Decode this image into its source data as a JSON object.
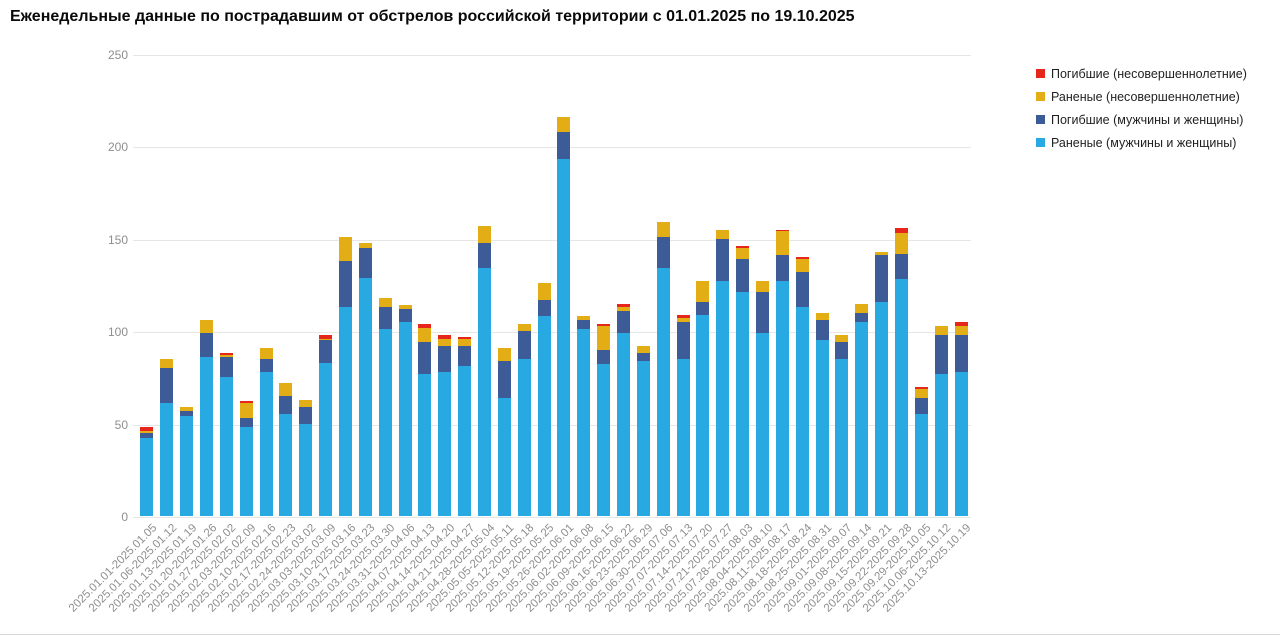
{
  "title": "Еженедельные данные по пострадавшим от обстрелов российской территории с 01.01.2025 по 19.10.2025",
  "legend": [
    {
      "label": "Погибшие (несовершеннолетние)",
      "color": "#e7261b"
    },
    {
      "label": "Раненые (несовершеннолетние)",
      "color": "#e2ad15"
    },
    {
      "label": "Погибшие (мужчины и женщины)",
      "color": "#3d5b97"
    },
    {
      "label": "Раненые (мужчины и женщины)",
      "color": "#29a9e1"
    }
  ],
  "chart_data": {
    "type": "bar",
    "stacked": true,
    "title": "Еженедельные данные по пострадавшим от обстрелов российской территории с 01.01.2025 по 19.10.2025",
    "xlabel": "",
    "ylabel": "",
    "ylim": [
      0,
      250
    ],
    "y_ticks": [
      0,
      50,
      100,
      150,
      200,
      250
    ],
    "grid": true,
    "legend_position": "top-right",
    "categories": [
      "2025.01.01-2025.01.05",
      "2025.01.06-2025.01.12",
      "2025.01.13-2025.01.19",
      "2025.01.20-2025.01.26",
      "2025.01.27-2025.02.02",
      "2025.02.03-2025.02.09",
      "2025.02.10-2025.02.16",
      "2025.02.17-2025.02.23",
      "2025.02.24-2025.03.02",
      "2025.03.03-2025.03.09",
      "2025.03.10-2025.03.16",
      "2025.03.17-2025.03.23",
      "2025.03.24-2025.03.30",
      "2025.03.31-2025.04.06",
      "2025.04.07-2025.04.13",
      "2025.04.14-2025.04.20",
      "2025.04.21-2025.04.27",
      "2025.04.28-2025.05.04",
      "2025.05.05-2025.05.11",
      "2025.05.12-2025.05.18",
      "2025.05.19-2025.05.25",
      "2025.05.26-2025.06.01",
      "2025.06.02-2025.06.08",
      "2025.06.09-2025.06.15",
      "2025.06.16-2025.06.22",
      "2025.06.23-2025.06.29",
      "2025.06.30-2025.07.06",
      "2025.07.07-2025.07.13",
      "2025.07.14-2025.07.20",
      "2025.07.21-2025.07.27",
      "2025.07.28-2025.08.03",
      "2025.08.04-2025.08.10",
      "2025.08.11-2025.08.17",
      "2025.08.18-2025.08.24",
      "2025.08.25-2025.08.31",
      "2025.09.01-2025.09.07",
      "2025.09.08-2025.09.14",
      "2025.09.15-2025.09.21",
      "2025.09.22-2025.09.28",
      "2025.09.29-2025.10.05",
      "2025.10.06-2025.10.12",
      "2025.10.13-2025.10.19"
    ],
    "series": [
      {
        "name": "Раненые (мужчины и женщины)",
        "color": "#29a9e1",
        "values": [
          42,
          61,
          54,
          86,
          75,
          48,
          78,
          55,
          50,
          83,
          113,
          129,
          101,
          105,
          77,
          78,
          81,
          134,
          64,
          85,
          108,
          193,
          101,
          82,
          99,
          84,
          134,
          85,
          109,
          127,
          121,
          99,
          127,
          113,
          95,
          85,
          105,
          116,
          128,
          55,
          77,
          78
        ]
      },
      {
        "name": "Погибшие (мужчины и женщины)",
        "color": "#3d5b97",
        "values": [
          3,
          19,
          3,
          13,
          11,
          5,
          7,
          10,
          9,
          12,
          25,
          16,
          12,
          7,
          17,
          14,
          11,
          14,
          20,
          15,
          9,
          15,
          5,
          8,
          12,
          4,
          17,
          20,
          7,
          23,
          18,
          22,
          14,
          19,
          11,
          9,
          5,
          25,
          14,
          9,
          21,
          20
        ]
      },
      {
        "name": "Раненые (несовершеннолетние)",
        "color": "#e2ad15",
        "values": [
          1,
          5,
          2,
          7,
          1,
          8,
          6,
          7,
          4,
          1,
          13,
          3,
          5,
          2,
          8,
          4,
          4,
          9,
          7,
          4,
          9,
          8,
          2,
          13,
          2,
          4,
          8,
          2,
          11,
          5,
          6,
          6,
          13,
          7,
          4,
          4,
          5,
          2,
          11,
          5,
          5,
          5
        ]
      },
      {
        "name": "Погибшие (несовершеннолетние)",
        "color": "#e7261b",
        "values": [
          2,
          0,
          0,
          0,
          1,
          1,
          0,
          0,
          0,
          2,
          0,
          0,
          0,
          0,
          2,
          2,
          1,
          0,
          0,
          0,
          0,
          0,
          0,
          1,
          2,
          0,
          0,
          2,
          0,
          0,
          1,
          0,
          1,
          1,
          0,
          0,
          0,
          0,
          3,
          1,
          0,
          2
        ]
      }
    ]
  }
}
